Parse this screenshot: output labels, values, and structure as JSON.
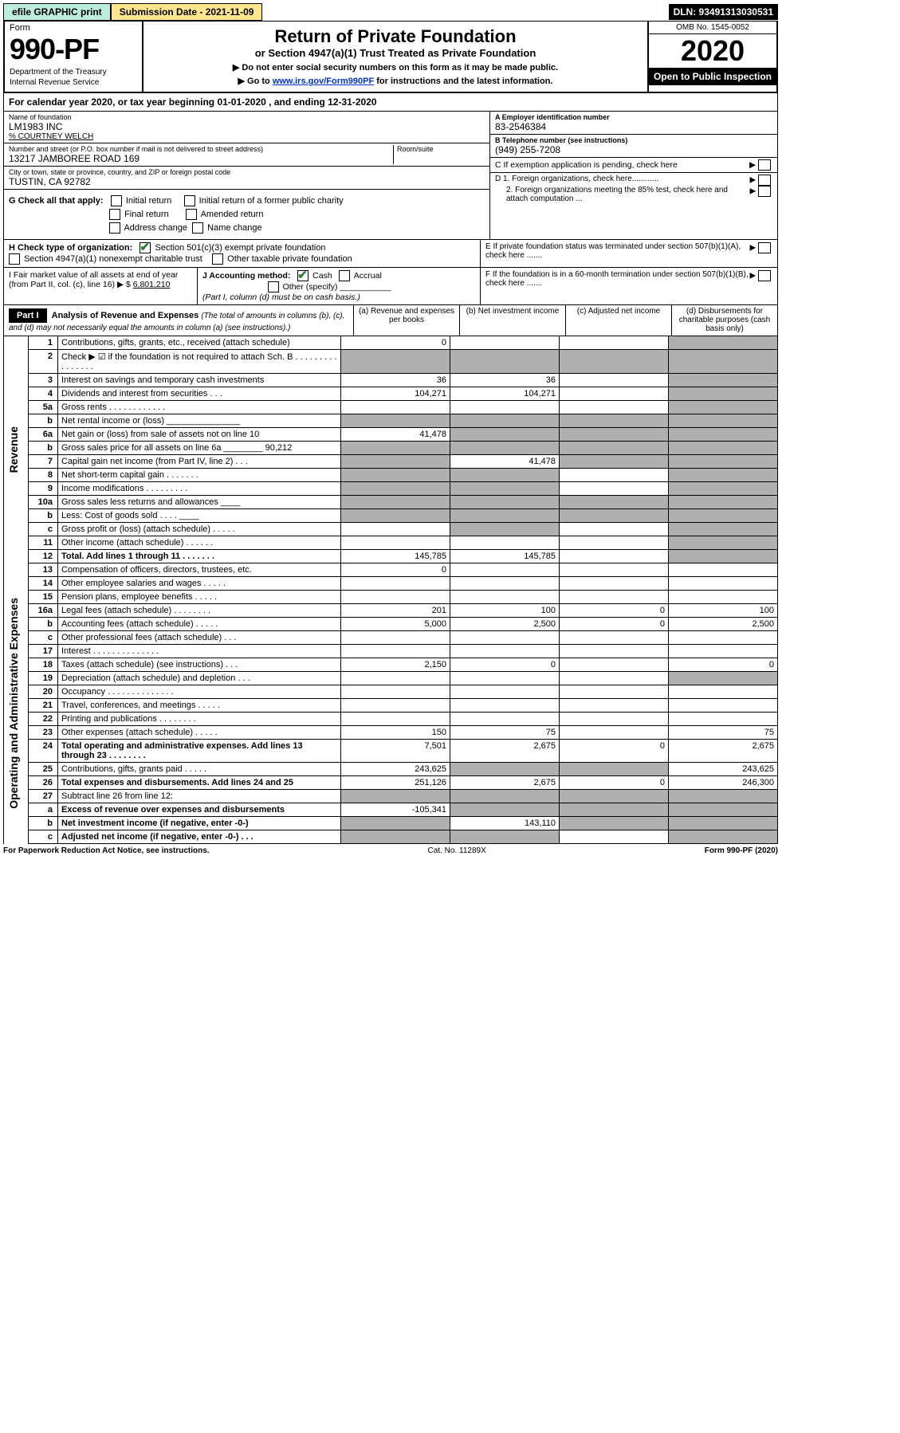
{
  "topbar": {
    "efile": "efile GRAPHIC print",
    "submission": "Submission Date - 2021-11-09",
    "dln": "DLN: 93491313030531"
  },
  "header": {
    "form_word": "Form",
    "form_num": "990-PF",
    "dept1": "Department of the Treasury",
    "dept2": "Internal Revenue Service",
    "title": "Return of Private Foundation",
    "subtitle": "or Section 4947(a)(1) Trust Treated as Private Foundation",
    "note1": "▶ Do not enter social security numbers on this form as it may be made public.",
    "note2_pre": "▶ Go to ",
    "note2_link": "www.irs.gov/Form990PF",
    "note2_post": " for instructions and the latest information.",
    "omb": "OMB No. 1545-0052",
    "year": "2020",
    "inspect": "Open to Public Inspection"
  },
  "cal": "For calendar year 2020, or tax year beginning 01-01-2020                           , and ending 12-31-2020",
  "entity": {
    "name_lbl": "Name of foundation",
    "name": "LM1983 INC",
    "pct": "% COURTNEY WELCH",
    "addr_lbl": "Number and street (or P.O. box number if mail is not delivered to street address)",
    "room_lbl": "Room/suite",
    "addr": "13217 JAMBOREE ROAD 169",
    "city_lbl": "City or town, state or province, country, and ZIP or foreign postal code",
    "city": "TUSTIN, CA  92782",
    "ein_lbl": "A Employer identification number",
    "ein": "83-2546384",
    "tel_lbl": "B Telephone number (see instructions)",
    "tel": "(949) 255-7208",
    "c": "C If exemption application is pending, check here",
    "d1": "D 1. Foreign organizations, check here............",
    "d2": "2. Foreign organizations meeting the 85% test, check here and attach computation ...",
    "e": "E  If private foundation status was terminated under section 507(b)(1)(A), check here .......",
    "f": "F  If the foundation is in a 60-month termination under section 507(b)(1)(B), check here .......",
    "g_lbl": "G Check all that apply:",
    "g_opts": [
      "Initial return",
      "Final return",
      "Address change",
      "Initial return of a former public charity",
      "Amended return",
      "Name change"
    ],
    "h_lbl": "H Check type of organization:",
    "h1": "Section 501(c)(3) exempt private foundation",
    "h2": "Section 4947(a)(1) nonexempt charitable trust",
    "h3": "Other taxable private foundation",
    "i_lbl": "I Fair market value of all assets at end of year (from Part II, col. (c), line 16) ▶ $",
    "i_val": "6,801,210",
    "j_lbl": "J Accounting method:",
    "j_cash": "Cash",
    "j_accr": "Accrual",
    "j_other": "Other (specify)",
    "j_note": "(Part I, column (d) must be on cash basis.)"
  },
  "part1": {
    "label": "Part I",
    "title": "Analysis of Revenue and Expenses",
    "title_note": "(The total of amounts in columns (b), (c), and (d) may not necessarily equal the amounts in column (a) (see instructions).)",
    "cols": [
      "(a)  Revenue and expenses per books",
      "(b)  Net investment income",
      "(c)  Adjusted net income",
      "(d)  Disbursements for charitable purposes (cash basis only)"
    ]
  },
  "sections": {
    "revenue": "Revenue",
    "opex": "Operating and Administrative Expenses"
  },
  "rows": [
    {
      "n": "1",
      "d": "Contributions, gifts, grants, etc., received (attach schedule)",
      "a": "0",
      "shade": [
        "d"
      ]
    },
    {
      "n": "2",
      "d": "Check ▶ ☑ if the foundation is not required to attach Sch. B  . . . . . . . . . . . . . . . .",
      "shade": [
        "a",
        "b",
        "c",
        "d"
      ]
    },
    {
      "n": "3",
      "d": "Interest on savings and temporary cash investments",
      "a": "36",
      "b": "36",
      "shade": [
        "d"
      ]
    },
    {
      "n": "4",
      "d": "Dividends and interest from securities  . . .",
      "a": "104,271",
      "b": "104,271",
      "shade": [
        "d"
      ]
    },
    {
      "n": "5a",
      "d": "Gross rents  . . . . . . . . . . . .",
      "shade": [
        "d"
      ]
    },
    {
      "n": "b",
      "d": "Net rental income or (loss)  _______________",
      "shade": [
        "a",
        "b",
        "c",
        "d"
      ]
    },
    {
      "n": "6a",
      "d": "Net gain or (loss) from sale of assets not on line 10",
      "a": "41,478",
      "shade": [
        "b",
        "c",
        "d"
      ]
    },
    {
      "n": "b",
      "d": "Gross sales price for all assets on line 6a ________ 90,212",
      "shade": [
        "a",
        "b",
        "c",
        "d"
      ]
    },
    {
      "n": "7",
      "d": "Capital gain net income (from Part IV, line 2)  . . .",
      "b": "41,478",
      "shade": [
        "a",
        "c",
        "d"
      ]
    },
    {
      "n": "8",
      "d": "Net short-term capital gain  . . . . . . .",
      "shade": [
        "a",
        "b",
        "d"
      ]
    },
    {
      "n": "9",
      "d": "Income modifications  . . . . . . . . .",
      "shade": [
        "a",
        "b",
        "d"
      ]
    },
    {
      "n": "10a",
      "d": "Gross sales less returns and allowances  ____",
      "shade": [
        "a",
        "b",
        "c",
        "d"
      ]
    },
    {
      "n": "b",
      "d": "Less: Cost of goods sold  . . . .  ____",
      "shade": [
        "a",
        "b",
        "c",
        "d"
      ]
    },
    {
      "n": "c",
      "d": "Gross profit or (loss) (attach schedule)  . . . . .",
      "shade": [
        "b",
        "d"
      ]
    },
    {
      "n": "11",
      "d": "Other income (attach schedule)  . . . . . .",
      "shade": [
        "d"
      ]
    },
    {
      "n": "12",
      "d": "Total. Add lines 1 through 11  . . . . . . .",
      "bold": true,
      "a": "145,785",
      "b": "145,785",
      "shade": [
        "d"
      ]
    }
  ],
  "opex_rows": [
    {
      "n": "13",
      "d": "Compensation of officers, directors, trustees, etc.",
      "a": "0"
    },
    {
      "n": "14",
      "d": "Other employee salaries and wages  . . . . ."
    },
    {
      "n": "15",
      "d": "Pension plans, employee benefits  . . . . ."
    },
    {
      "n": "16a",
      "d": "Legal fees (attach schedule) . . . . . . . .",
      "a": "201",
      "b": "100",
      "c": "0",
      "dd": "100"
    },
    {
      "n": "b",
      "d": "Accounting fees (attach schedule)  . . . . .",
      "a": "5,000",
      "b": "2,500",
      "c": "0",
      "dd": "2,500"
    },
    {
      "n": "c",
      "d": "Other professional fees (attach schedule)  . . ."
    },
    {
      "n": "17",
      "d": "Interest  . . . . . . . . . . . . . ."
    },
    {
      "n": "18",
      "d": "Taxes (attach schedule) (see instructions)  . . .",
      "a": "2,150",
      "b": "0",
      "dd": "0"
    },
    {
      "n": "19",
      "d": "Depreciation (attach schedule) and depletion  . . .",
      "shade": [
        "d"
      ]
    },
    {
      "n": "20",
      "d": "Occupancy . . . . . . . . . . . . . ."
    },
    {
      "n": "21",
      "d": "Travel, conferences, and meetings  . . . . ."
    },
    {
      "n": "22",
      "d": "Printing and publications  . . . . . . . ."
    },
    {
      "n": "23",
      "d": "Other expenses (attach schedule)  . . . . .",
      "a": "150",
      "b": "75",
      "dd": "75"
    },
    {
      "n": "24",
      "d": "Total operating and administrative expenses. Add lines 13 through 23  . . . . . . . .",
      "bold": true,
      "a": "7,501",
      "b": "2,675",
      "c": "0",
      "dd": "2,675"
    },
    {
      "n": "25",
      "d": "Contributions, gifts, grants paid  . . . . .",
      "a": "243,625",
      "shade": [
        "b",
        "c"
      ],
      "dd": "243,625"
    },
    {
      "n": "26",
      "d": "Total expenses and disbursements. Add lines 24 and 25",
      "bold": true,
      "a": "251,126",
      "b": "2,675",
      "c": "0",
      "dd": "246,300"
    },
    {
      "n": "27",
      "d": "Subtract line 26 from line 12:",
      "shade": [
        "a",
        "b",
        "c",
        "d"
      ]
    },
    {
      "n": "a",
      "d": "Excess of revenue over expenses and disbursements",
      "bold": true,
      "a": "-105,341",
      "shade": [
        "b",
        "c",
        "d"
      ]
    },
    {
      "n": "b",
      "d": "Net investment income (if negative, enter -0-)",
      "bold": true,
      "b": "143,110",
      "shade": [
        "a",
        "c",
        "d"
      ]
    },
    {
      "n": "c",
      "d": "Adjusted net income (if negative, enter -0-)  . . .",
      "bold": true,
      "shade": [
        "a",
        "b",
        "d"
      ]
    }
  ],
  "footer": {
    "left": "For Paperwork Reduction Act Notice, see instructions.",
    "mid": "Cat. No. 11289X",
    "right": "Form 990-PF (2020)"
  },
  "colors": {
    "efile_bg": "#bceedb",
    "sub_bg": "#ffe58c",
    "black": "#000000",
    "shade": "#b0b0b0",
    "link": "#0033cc",
    "check": "#2e7d32"
  }
}
